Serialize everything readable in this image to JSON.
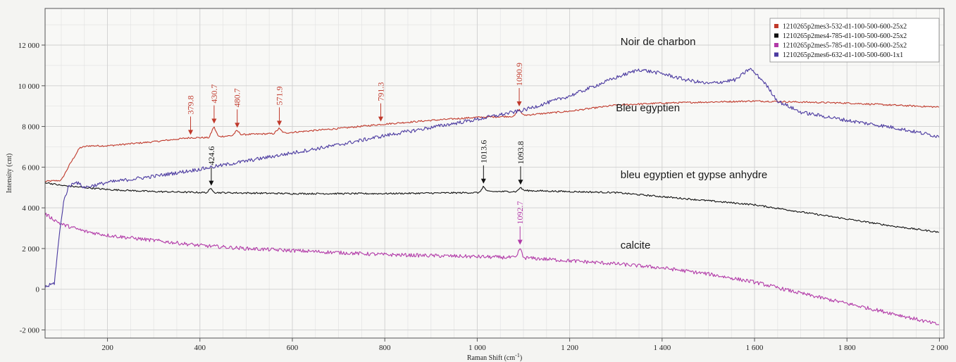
{
  "chart_data": {
    "type": "line",
    "xlabel": "Raman Shift (cm",
    "xlabel_sup": "-1",
    "xlabel_close": ")",
    "ylabel": "Intensity (cnt)",
    "xlim": [
      65,
      2010
    ],
    "ylim": [
      -2400,
      13800
    ],
    "x_ticks": [
      {
        "v": 200,
        "label": "200"
      },
      {
        "v": 400,
        "label": "400"
      },
      {
        "v": 600,
        "label": "600"
      },
      {
        "v": 800,
        "label": "800"
      },
      {
        "v": 1000,
        "label": "1 000"
      },
      {
        "v": 1200,
        "label": "1 200"
      },
      {
        "v": 1400,
        "label": "1 400"
      },
      {
        "v": 1600,
        "label": "1 600"
      },
      {
        "v": 1800,
        "label": "1 800"
      },
      {
        "v": 2000,
        "label": "2 000"
      }
    ],
    "y_ticks": [
      {
        "v": -2000,
        "label": "-2 000"
      },
      {
        "v": 0,
        "label": "0"
      },
      {
        "v": 2000,
        "label": "2 000"
      },
      {
        "v": 4000,
        "label": "4 000"
      },
      {
        "v": 6000,
        "label": "6 000"
      },
      {
        "v": 8000,
        "label": "8 000"
      },
      {
        "v": 10000,
        "label": "10 000"
      },
      {
        "v": 12000,
        "label": "12 000"
      }
    ],
    "grid": true,
    "legend_position": "top-right",
    "series": [
      {
        "name": "1210265p2mes3-532-d1-100-500-600-25x2",
        "color": "#c0392b",
        "noise": 40,
        "points": [
          [
            65,
            5300
          ],
          [
            100,
            5350
          ],
          [
            120,
            6200
          ],
          [
            140,
            6950
          ],
          [
            160,
            7050
          ],
          [
            200,
            7050
          ],
          [
            300,
            7250
          ],
          [
            380,
            7450
          ],
          [
            420,
            7450
          ],
          [
            430,
            8000
          ],
          [
            440,
            7500
          ],
          [
            470,
            7550
          ],
          [
            480,
            7800
          ],
          [
            490,
            7600
          ],
          [
            560,
            7650
          ],
          [
            571,
            7900
          ],
          [
            582,
            7680
          ],
          [
            700,
            7900
          ],
          [
            791,
            8100
          ],
          [
            900,
            8300
          ],
          [
            1000,
            8450
          ],
          [
            1080,
            8500
          ],
          [
            1090,
            8850
          ],
          [
            1100,
            8550
          ],
          [
            1200,
            8750
          ],
          [
            1300,
            9050
          ],
          [
            1400,
            9150
          ],
          [
            1500,
            9200
          ],
          [
            1600,
            9250
          ],
          [
            1700,
            9200
          ],
          [
            1800,
            9150
          ],
          [
            1900,
            9050
          ],
          [
            2000,
            8950
          ]
        ]
      },
      {
        "name": "1210265p2mes4-785-d1-100-500-600-25x2",
        "color": "#111111",
        "noise": 40,
        "points": [
          [
            65,
            5250
          ],
          [
            100,
            5100
          ],
          [
            200,
            4900
          ],
          [
            300,
            4800
          ],
          [
            415,
            4750
          ],
          [
            424,
            4950
          ],
          [
            433,
            4750
          ],
          [
            600,
            4700
          ],
          [
            800,
            4700
          ],
          [
            1005,
            4750
          ],
          [
            1013,
            5050
          ],
          [
            1022,
            4800
          ],
          [
            1085,
            4800
          ],
          [
            1093,
            5000
          ],
          [
            1102,
            4850
          ],
          [
            1200,
            4800
          ],
          [
            1300,
            4750
          ],
          [
            1400,
            4550
          ],
          [
            1500,
            4350
          ],
          [
            1600,
            4150
          ],
          [
            1700,
            3800
          ],
          [
            1800,
            3450
          ],
          [
            1900,
            3100
          ],
          [
            2000,
            2800
          ]
        ]
      },
      {
        "name": "1210265p2mes5-785-d1-100-500-600-25x2",
        "color": "#b23aa8",
        "noise": 90,
        "points": [
          [
            65,
            3700
          ],
          [
            100,
            3200
          ],
          [
            150,
            2850
          ],
          [
            200,
            2650
          ],
          [
            300,
            2400
          ],
          [
            400,
            2150
          ],
          [
            500,
            2000
          ],
          [
            600,
            1900
          ],
          [
            700,
            1800
          ],
          [
            800,
            1700
          ],
          [
            900,
            1650
          ],
          [
            1000,
            1600
          ],
          [
            1085,
            1550
          ],
          [
            1092,
            2050
          ],
          [
            1100,
            1550
          ],
          [
            1200,
            1400
          ],
          [
            1300,
            1250
          ],
          [
            1400,
            1050
          ],
          [
            1500,
            750
          ],
          [
            1600,
            350
          ],
          [
            1700,
            -200
          ],
          [
            1800,
            -700
          ],
          [
            1900,
            -1200
          ],
          [
            2000,
            -1750
          ]
        ]
      },
      {
        "name": "1210265p2mes6-632-d1-100-500-600-1x1",
        "color": "#4b3aa0",
        "noise": 90,
        "points": [
          [
            65,
            100
          ],
          [
            85,
            300
          ],
          [
            95,
            2500
          ],
          [
            105,
            4300
          ],
          [
            115,
            5000
          ],
          [
            130,
            5300
          ],
          [
            150,
            5000
          ],
          [
            200,
            5250
          ],
          [
            300,
            5550
          ],
          [
            400,
            5900
          ],
          [
            500,
            6300
          ],
          [
            600,
            6700
          ],
          [
            700,
            7100
          ],
          [
            800,
            7550
          ],
          [
            900,
            7950
          ],
          [
            1000,
            8350
          ],
          [
            1100,
            8800
          ],
          [
            1200,
            9500
          ],
          [
            1300,
            10400
          ],
          [
            1350,
            10800
          ],
          [
            1400,
            10600
          ],
          [
            1450,
            10300
          ],
          [
            1500,
            10100
          ],
          [
            1560,
            10300
          ],
          [
            1590,
            10850
          ],
          [
            1620,
            10200
          ],
          [
            1650,
            9250
          ],
          [
            1700,
            8700
          ],
          [
            1800,
            8300
          ],
          [
            1900,
            7950
          ],
          [
            2000,
            7500
          ]
        ]
      }
    ],
    "peak_annotations": [
      {
        "x": 379.8,
        "y": 7450,
        "label": "379.8",
        "color": "#c0392b"
      },
      {
        "x": 430.7,
        "y": 8000,
        "label": "430.7",
        "color": "#c0392b"
      },
      {
        "x": 480.7,
        "y": 7800,
        "label": "480.7",
        "color": "#c0392b"
      },
      {
        "x": 571.9,
        "y": 7900,
        "label": "571.9",
        "color": "#c0392b"
      },
      {
        "x": 791.3,
        "y": 8100,
        "label": "791.3",
        "color": "#c0392b"
      },
      {
        "x": 1090.9,
        "y": 8850,
        "label": "1090.9",
        "color": "#c0392b"
      },
      {
        "x": 424.6,
        "y": 4950,
        "label": "424.6",
        "color": "#111111"
      },
      {
        "x": 1013.6,
        "y": 5050,
        "label": "1013.6",
        "color": "#111111"
      },
      {
        "x": 1093.8,
        "y": 5000,
        "label": "1093.8",
        "color": "#111111"
      },
      {
        "x": 1092.7,
        "y": 2050,
        "label": "1092.7",
        "color": "#b23aa8"
      }
    ],
    "sample_labels": [
      {
        "text": "Noir de charbon",
        "x": 1310,
        "y": 12000
      },
      {
        "text": "Bleu egyptien",
        "x": 1300,
        "y": 8750
      },
      {
        "text": "bleu egyptien et gypse anhydre",
        "x": 1310,
        "y": 5450
      },
      {
        "text": "calcite",
        "x": 1310,
        "y": 2000
      }
    ]
  }
}
